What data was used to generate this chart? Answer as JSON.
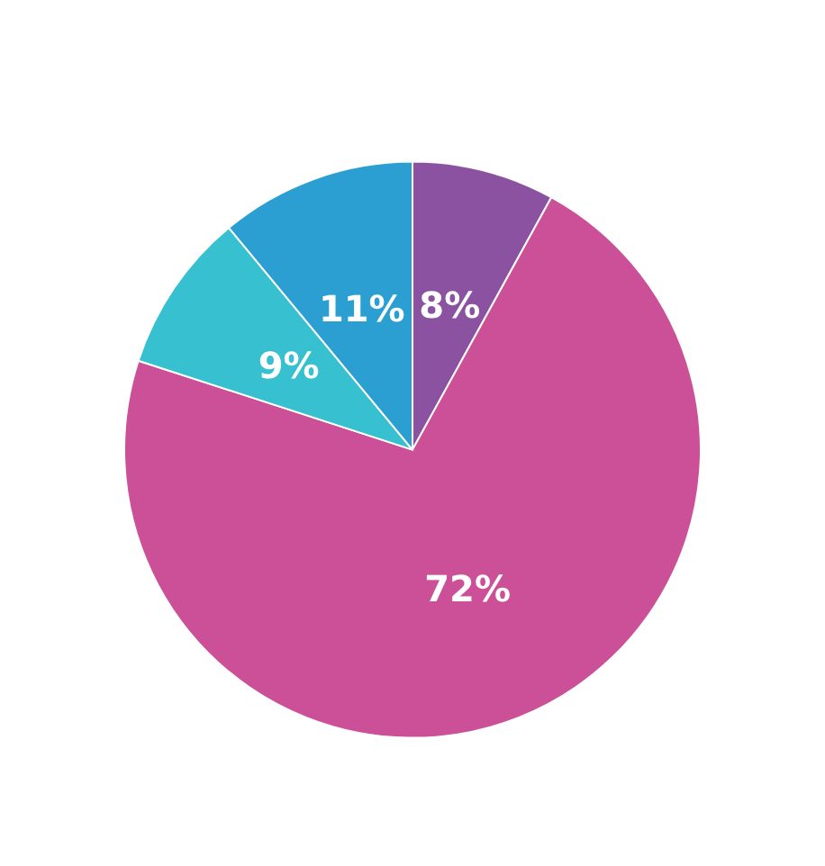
{
  "chart_data": {
    "type": "pie",
    "categories": [
      null,
      null,
      null,
      null
    ],
    "values": [
      8,
      72,
      9,
      11
    ],
    "colors": [
      "#8a52a0",
      "#cc5097",
      "#36c0d0",
      "#2b9fd1"
    ],
    "value_labels": [
      "8%",
      "72%",
      "9%",
      "11%"
    ]
  }
}
